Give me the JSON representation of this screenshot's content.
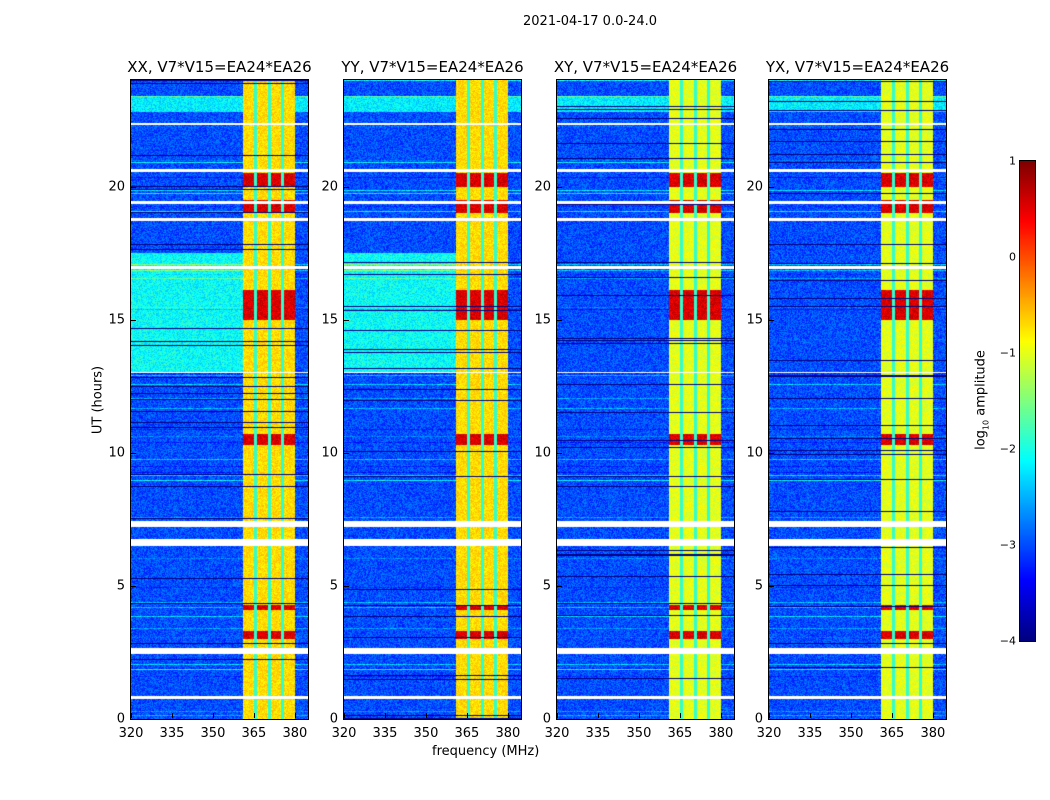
{
  "chart_data": {
    "type": "heatmap",
    "title": "2021-04-17 0.0-24.0",
    "xlabel": "frequency (MHz)",
    "ylabel": "UT (hours)",
    "xlim": [
      320,
      384.8
    ],
    "ylim": [
      0,
      24
    ],
    "xticks": [
      "320",
      "335",
      "350",
      "365",
      "380"
    ],
    "yticks": [
      "0",
      "5",
      "10",
      "15",
      "20"
    ],
    "panels": [
      {
        "title": "XX, V7*V15=EA24*EA26",
        "pol": "XX"
      },
      {
        "title": "YY, V7*V15=EA24*EA26",
        "pol": "YY"
      },
      {
        "title": "XY, V7*V15=EA24*EA26",
        "pol": "XY"
      },
      {
        "title": "YX, V7*V15=EA24*EA26",
        "pol": "YX"
      }
    ],
    "colorbar": {
      "label_prefix": "log",
      "label_sub": "10",
      "label_suffix": " amplitude",
      "range": [
        -4,
        1
      ],
      "ticks": [
        "1",
        "0",
        "−1",
        "−2",
        "−3",
        "−4"
      ],
      "colormap": "jet"
    },
    "rfi_band_mhz": [
      361,
      380
    ],
    "flagged_hours": [
      [
        0.75,
        0.85
      ],
      [
        2.45,
        2.65
      ],
      [
        6.5,
        6.75
      ],
      [
        7.2,
        7.45
      ],
      [
        13.0,
        13.05
      ],
      [
        16.9,
        17.0
      ],
      [
        18.7,
        18.8
      ],
      [
        19.35,
        19.45
      ],
      [
        20.55,
        20.65
      ],
      [
        22.3,
        22.4
      ]
    ],
    "bright_hours": [
      [
        20.0,
        20.5
      ],
      [
        19.0,
        19.5
      ],
      [
        15.0,
        16.1
      ],
      [
        10.3,
        10.7
      ],
      [
        4.1,
        4.3
      ],
      [
        3.0,
        3.3
      ]
    ]
  }
}
